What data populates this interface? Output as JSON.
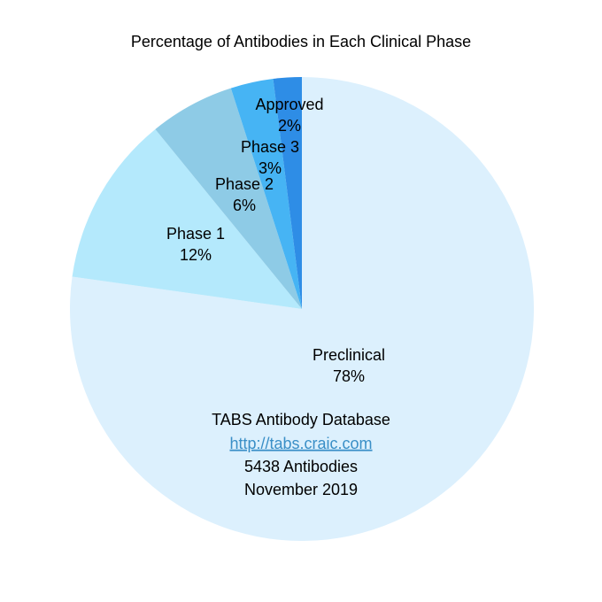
{
  "chart_data": {
    "type": "pie",
    "title": "Percentage of Antibodies in Each Clinical Phase",
    "categories": [
      "Preclinical",
      "Phase 1",
      "Phase 2",
      "Phase 3",
      "Approved"
    ],
    "values": [
      78,
      12,
      6,
      3,
      2
    ],
    "value_labels": [
      "78%",
      "12%",
      "6%",
      "3%",
      "2%"
    ],
    "colors": [
      "#dcf0fd",
      "#b4e9fc",
      "#8ecbe6",
      "#46b4f4",
      "#2e8de6"
    ],
    "annotations": [
      "TABS Antibody Database",
      "http://tabs.craic.com",
      "5438 Antibodies",
      "November 2019"
    ]
  }
}
